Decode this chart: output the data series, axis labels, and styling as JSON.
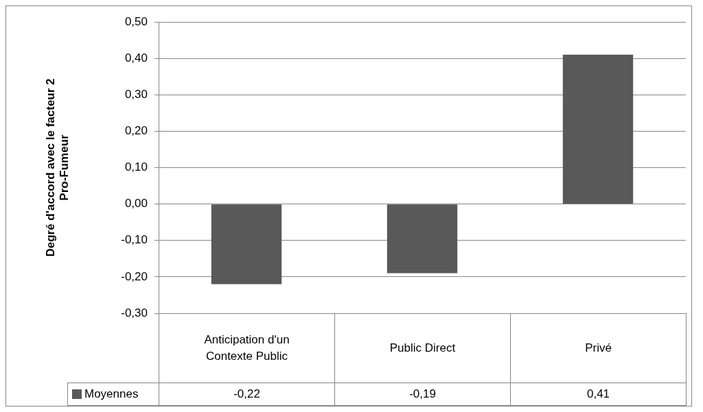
{
  "chart_data": {
    "type": "bar",
    "ylabel": "Degré d'accord avec le facteur 2 Pro-Fumeur",
    "categories": [
      "Anticipation d'un Contexte Public",
      "Public Direct",
      "Privé"
    ],
    "series": [
      {
        "name": "Moyennes",
        "color": "#595959",
        "values": [
          -0.22,
          -0.19,
          0.41
        ],
        "value_labels": [
          "-0,22",
          "-0,19",
          "0,41"
        ]
      }
    ],
    "ylim": [
      -0.3,
      0.5
    ],
    "yticks": [
      {
        "value": -0.3,
        "label": "-0,30"
      },
      {
        "value": -0.2,
        "label": "-0,20"
      },
      {
        "value": -0.1,
        "label": "-0,10"
      },
      {
        "value": 0,
        "label": "0,00"
      },
      {
        "value": 0.1,
        "label": "0,10"
      },
      {
        "value": 0.2,
        "label": "0,20"
      },
      {
        "value": 0.3,
        "label": "0,30"
      },
      {
        "value": 0.4,
        "label": "0,40"
      },
      {
        "value": 0.5,
        "label": "0,50"
      }
    ],
    "grid": "y",
    "legend": "bottom"
  }
}
